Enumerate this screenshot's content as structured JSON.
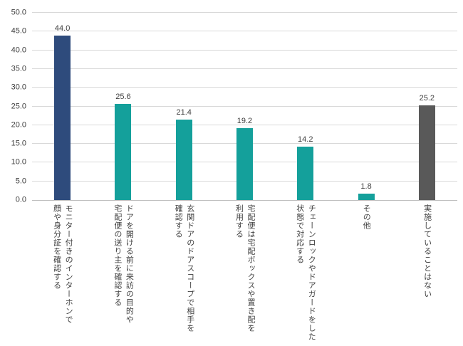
{
  "chart_data": {
    "type": "bar",
    "title": "",
    "xlabel": "",
    "ylabel": "",
    "categories": [
      "モニター付きのインターホンで\n顔や身分証を確認する",
      "ドアを開ける前に来訪の目的や\n宅配便の送り主を確認する",
      "玄関ドアのドアスコープで相手を\n確認する",
      "宅配便は宅配ボックスや置き配を\n利用する",
      "チェーンロックやドアガードをした\n状態で対応する",
      "その他",
      "実施していることはない"
    ],
    "values": [
      44.0,
      25.6,
      21.4,
      19.2,
      14.2,
      1.8,
      25.2
    ],
    "value_labels": [
      "44.0",
      "25.6",
      "21.4",
      "19.2",
      "14.2",
      "1.8",
      "25.2"
    ],
    "bar_colors": [
      "#2e4b7c",
      "#14a09b",
      "#14a09b",
      "#14a09b",
      "#14a09b",
      "#14a09b",
      "#595959"
    ],
    "ylim": [
      0,
      50
    ],
    "ytick_step": 5,
    "ytick_labels": [
      "0.0",
      "5.0",
      "10.0",
      "15.0",
      "20.0",
      "25.0",
      "30.0",
      "35.0",
      "40.0",
      "45.0",
      "50.0"
    ],
    "grid": true,
    "legend_position": "none"
  },
  "colors": {
    "gridline": "#d9d9d9",
    "axis_line": "#bfbfbf",
    "text": "#404040",
    "background": "#ffffff"
  }
}
